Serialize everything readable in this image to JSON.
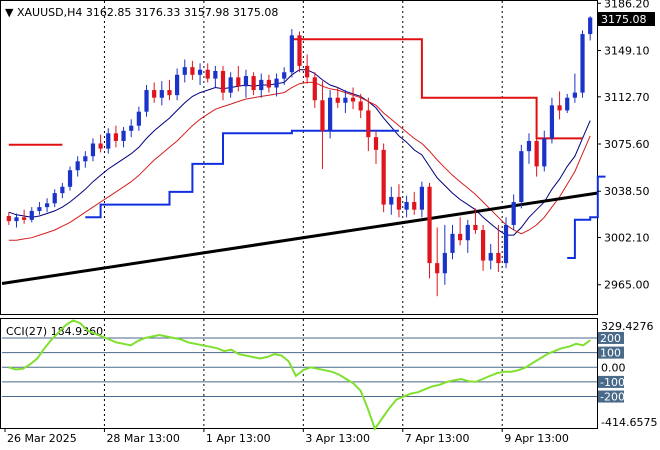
{
  "header": {
    "symbol": "XAUUSD,H4",
    "open": "3162.85",
    "high": "3176.33",
    "low": "3157.98",
    "close": "3175.08"
  },
  "price_box": {
    "label": "3175.08"
  },
  "cci_title": "CCI(27) 184.9360",
  "colors": {
    "bull": "#1a33c8",
    "bear": "#e0141c",
    "ma_fast": "#000080",
    "ma_slow": "#d41e1e",
    "stop_red": "#e01010",
    "stop_blue": "#1030e0",
    "trend": "#000000",
    "cci": "#80e030",
    "level": "#4a6a8a"
  },
  "chart_data": [
    {
      "type": "candlestick",
      "title": "XAUUSD,H4",
      "ylim": [
        2942,
        3188
      ],
      "y_ticks": [
        3186.2,
        3149.1,
        3112.7,
        3075.6,
        3038.5,
        3002.1,
        2965.0
      ],
      "y_tick_labels": [
        "3186.20",
        "3149.10",
        "3112.70",
        "3075.60",
        "3038.50",
        "3002.10",
        "2965.00"
      ],
      "x_labels": [
        "26 Mar 2025",
        "28 Mar 13:00",
        "1 Apr 13:00",
        "3 Apr 13:00",
        "7 Apr 13:00",
        "9 Apr 13:00"
      ],
      "candles": [
        [
          3019,
          3022,
          3012,
          3015
        ],
        [
          3015,
          3021,
          3010,
          3018
        ],
        [
          3018,
          3024,
          3013,
          3016
        ],
        [
          3016,
          3026,
          3014,
          3023
        ],
        [
          3023,
          3030,
          3020,
          3026
        ],
        [
          3026,
          3033,
          3022,
          3029
        ],
        [
          3029,
          3040,
          3026,
          3037
        ],
        [
          3037,
          3045,
          3033,
          3042
        ],
        [
          3042,
          3058,
          3039,
          3055
        ],
        [
          3055,
          3066,
          3050,
          3062
        ],
        [
          3062,
          3070,
          3057,
          3066
        ],
        [
          3066,
          3080,
          3062,
          3076
        ],
        [
          3076,
          3083,
          3069,
          3072
        ],
        [
          3072,
          3088,
          3068,
          3084
        ],
        [
          3084,
          3090,
          3073,
          3078
        ],
        [
          3078,
          3089,
          3073,
          3086
        ],
        [
          3086,
          3095,
          3081,
          3090
        ],
        [
          3090,
          3105,
          3086,
          3101
        ],
        [
          3101,
          3122,
          3097,
          3118
        ],
        [
          3118,
          3124,
          3108,
          3112
        ],
        [
          3112,
          3125,
          3106,
          3118
        ],
        [
          3118,
          3126,
          3110,
          3114
        ],
        [
          3114,
          3135,
          3110,
          3130
        ],
        [
          3130,
          3142,
          3124,
          3136
        ],
        [
          3136,
          3141,
          3126,
          3130
        ],
        [
          3130,
          3139,
          3122,
          3134
        ],
        [
          3134,
          3139,
          3124,
          3127
        ],
        [
          3127,
          3137,
          3120,
          3133
        ],
        [
          3133,
          3137,
          3110,
          3116
        ],
        [
          3116,
          3132,
          3112,
          3128
        ],
        [
          3128,
          3137,
          3117,
          3121
        ],
        [
          3121,
          3134,
          3112,
          3129
        ],
        [
          3129,
          3132,
          3114,
          3118
        ],
        [
          3118,
          3131,
          3112,
          3126
        ],
        [
          3126,
          3130,
          3116,
          3120
        ],
        [
          3120,
          3131,
          3113,
          3127
        ],
        [
          3127,
          3136,
          3122,
          3132
        ],
        [
          3132,
          3166,
          3128,
          3161
        ],
        [
          3161,
          3164,
          3132,
          3137
        ],
        [
          3137,
          3146,
          3123,
          3128
        ],
        [
          3128,
          3132,
          3104,
          3110
        ],
        [
          3110,
          3125,
          3056,
          3086
        ],
        [
          3086,
          3118,
          3080,
          3112
        ],
        [
          3112,
          3120,
          3104,
          3108
        ],
        [
          3108,
          3118,
          3100,
          3112
        ],
        [
          3112,
          3120,
          3103,
          3109
        ],
        [
          3109,
          3115,
          3096,
          3102
        ],
        [
          3102,
          3112,
          3070,
          3081
        ],
        [
          3081,
          3086,
          3060,
          3071
        ],
        [
          3071,
          3076,
          3022,
          3028
        ],
        [
          3028,
          3042,
          3020,
          3034
        ],
        [
          3034,
          3044,
          3018,
          3024
        ],
        [
          3024,
          3035,
          3018,
          3030
        ],
        [
          3030,
          3038,
          3020,
          3024
        ],
        [
          3024,
          3046,
          3018,
          3042
        ],
        [
          3042,
          3045,
          2970,
          2982
        ],
        [
          2982,
          3010,
          2956,
          2974
        ],
        [
          2974,
          3012,
          2965,
          2990
        ],
        [
          2990,
          3012,
          2985,
          3005
        ],
        [
          3005,
          3018,
          2996,
          3000
        ],
        [
          3000,
          3016,
          2990,
          3012
        ],
        [
          3012,
          3025,
          3005,
          3008
        ],
        [
          3008,
          3012,
          2976,
          2984
        ],
        [
          2984,
          2997,
          2977,
          2990
        ],
        [
          2990,
          3012,
          2975,
          2982
        ],
        [
          2982,
          3018,
          2978,
          3012
        ],
        [
          3012,
          3036,
          3008,
          3030
        ],
        [
          3030,
          3075,
          3025,
          3070
        ],
        [
          3070,
          3084,
          3060,
          3078
        ],
        [
          3078,
          3085,
          3050,
          3058
        ],
        [
          3058,
          3086,
          3054,
          3080
        ],
        [
          3080,
          3112,
          3076,
          3106
        ],
        [
          3106,
          3117,
          3095,
          3102
        ],
        [
          3102,
          3115,
          3100,
          3112
        ],
        [
          3112,
          3131,
          3108,
          3116
        ],
        [
          3116,
          3165,
          3112,
          3162
        ],
        [
          3162,
          3176,
          3157,
          3175
        ]
      ],
      "series": [
        {
          "values": [
            3022,
            3020,
            3019,
            3018,
            3019,
            3021,
            3023,
            3026,
            3030,
            3035,
            3040,
            3046,
            3051,
            3056,
            3060,
            3064,
            3068,
            3073,
            3080,
            3086,
            3091,
            3096,
            3102,
            3108,
            3113,
            3116,
            3118,
            3120,
            3119,
            3120,
            3121,
            3122,
            3121,
            3122,
            3122,
            3123,
            3124,
            3130,
            3134,
            3134,
            3131,
            3126,
            3122,
            3120,
            3117,
            3115,
            3113,
            3109,
            3104,
            3096,
            3089,
            3082,
            3077,
            3071,
            3067,
            3058,
            3049,
            3043,
            3037,
            3032,
            3028,
            3024,
            3018,
            3013,
            3008,
            3004,
            3004,
            3010,
            3018,
            3024,
            3030,
            3040,
            3048,
            3058,
            3066,
            3080,
            3094
          ]
        },
        {
          "values": [
            3000,
            3000,
            3001,
            3002,
            3004,
            3006,
            3008,
            3011,
            3014,
            3018,
            3022,
            3026,
            3030,
            3034,
            3038,
            3042,
            3046,
            3051,
            3057,
            3063,
            3068,
            3073,
            3078,
            3084,
            3090,
            3095,
            3099,
            3103,
            3105,
            3107,
            3109,
            3111,
            3112,
            3113,
            3114,
            3115,
            3116,
            3120,
            3123,
            3124,
            3124,
            3121,
            3119,
            3118,
            3116,
            3114,
            3112,
            3109,
            3106,
            3100,
            3095,
            3090,
            3085,
            3080,
            3076,
            3070,
            3063,
            3057,
            3051,
            3046,
            3041,
            3036,
            3030,
            3024,
            3018,
            3012,
            3008,
            3005,
            3008,
            3012,
            3018,
            3026,
            3034,
            3044,
            3054,
            3068,
            3082
          ]
        },
        {
          "values": [
            3075,
            3075,
            3075,
            3075,
            3075,
            3075,
            3075,
            3075,
            null,
            null,
            null,
            null,
            null,
            null,
            null,
            null,
            null,
            null,
            null,
            null,
            null,
            null,
            null,
            null,
            null,
            null,
            null,
            null,
            null,
            null,
            null,
            null,
            null,
            null,
            null,
            null,
            null,
            3158,
            3158,
            3158,
            3158,
            3158,
            3158,
            3158,
            3158,
            3158,
            3158,
            3158,
            3158,
            3158,
            3158,
            3158,
            3158,
            3158,
            3112,
            3112,
            3112,
            3112,
            3112,
            3112,
            3112,
            3112,
            3112,
            3112,
            3112,
            3112,
            3112,
            3112,
            3112,
            3080,
            3080,
            3080,
            3080,
            3080,
            3080,
            3080,
            null,
            null,
            null,
            null
          ]
        },
        {
          "values": [
            null,
            null,
            null,
            null,
            null,
            null,
            null,
            null,
            null,
            null,
            3018,
            3018,
            3028,
            3028,
            3028,
            3028,
            3028,
            3028,
            3028,
            3028,
            3028,
            3038,
            3038,
            3038,
            3060,
            3060,
            3060,
            3060,
            3084,
            3084,
            3084,
            3084,
            3084,
            3084,
            3084,
            3084,
            3084,
            3086,
            3086,
            3086,
            3086,
            3086,
            3086,
            3086,
            3086,
            3086,
            3086,
            3086,
            3086,
            3086,
            3086,
            3086,
            null,
            null,
            null,
            null,
            null,
            null,
            null,
            null,
            null,
            null,
            null,
            null,
            null,
            null,
            null,
            null,
            null,
            null,
            null,
            null,
            null,
            2986,
            3016,
            3016,
            3018,
            3050,
            3050
          ]
        },
        {
          "values": [
            2966,
            3037
          ]
        }
      ]
    },
    {
      "type": "line",
      "title": "CCI(27) 184.9360",
      "ylim": [
        -414.6575,
        329.4276
      ],
      "y_tick_labels": [
        "329.4276",
        "200",
        "100",
        "0.00",
        "-100",
        "-200",
        "-414.6575"
      ],
      "levels": [
        200,
        100,
        0,
        -100,
        -200
      ],
      "series": [
        {
          "values": [
            0,
            -15,
            -10,
            20,
            60,
            130,
            190,
            240,
            290,
            320,
            300,
            250,
            230,
            210,
            190,
            170,
            160,
            150,
            180,
            200,
            210,
            220,
            210,
            200,
            190,
            170,
            160,
            150,
            140,
            130,
            110,
            120,
            90,
            80,
            70,
            60,
            70,
            90,
            80,
            40,
            -60,
            -20,
            0,
            -10,
            -20,
            -30,
            -50,
            -80,
            -110,
            -160,
            -280,
            -420,
            -350,
            -280,
            -220,
            -200,
            -180,
            -170,
            -150,
            -130,
            -120,
            -100,
            -90,
            -80,
            -95,
            -100,
            -80,
            -60,
            -40,
            -30,
            -30,
            -20,
            0,
            30,
            60,
            90,
            110,
            130,
            140,
            160,
            150,
            185
          ]
        }
      ]
    }
  ]
}
